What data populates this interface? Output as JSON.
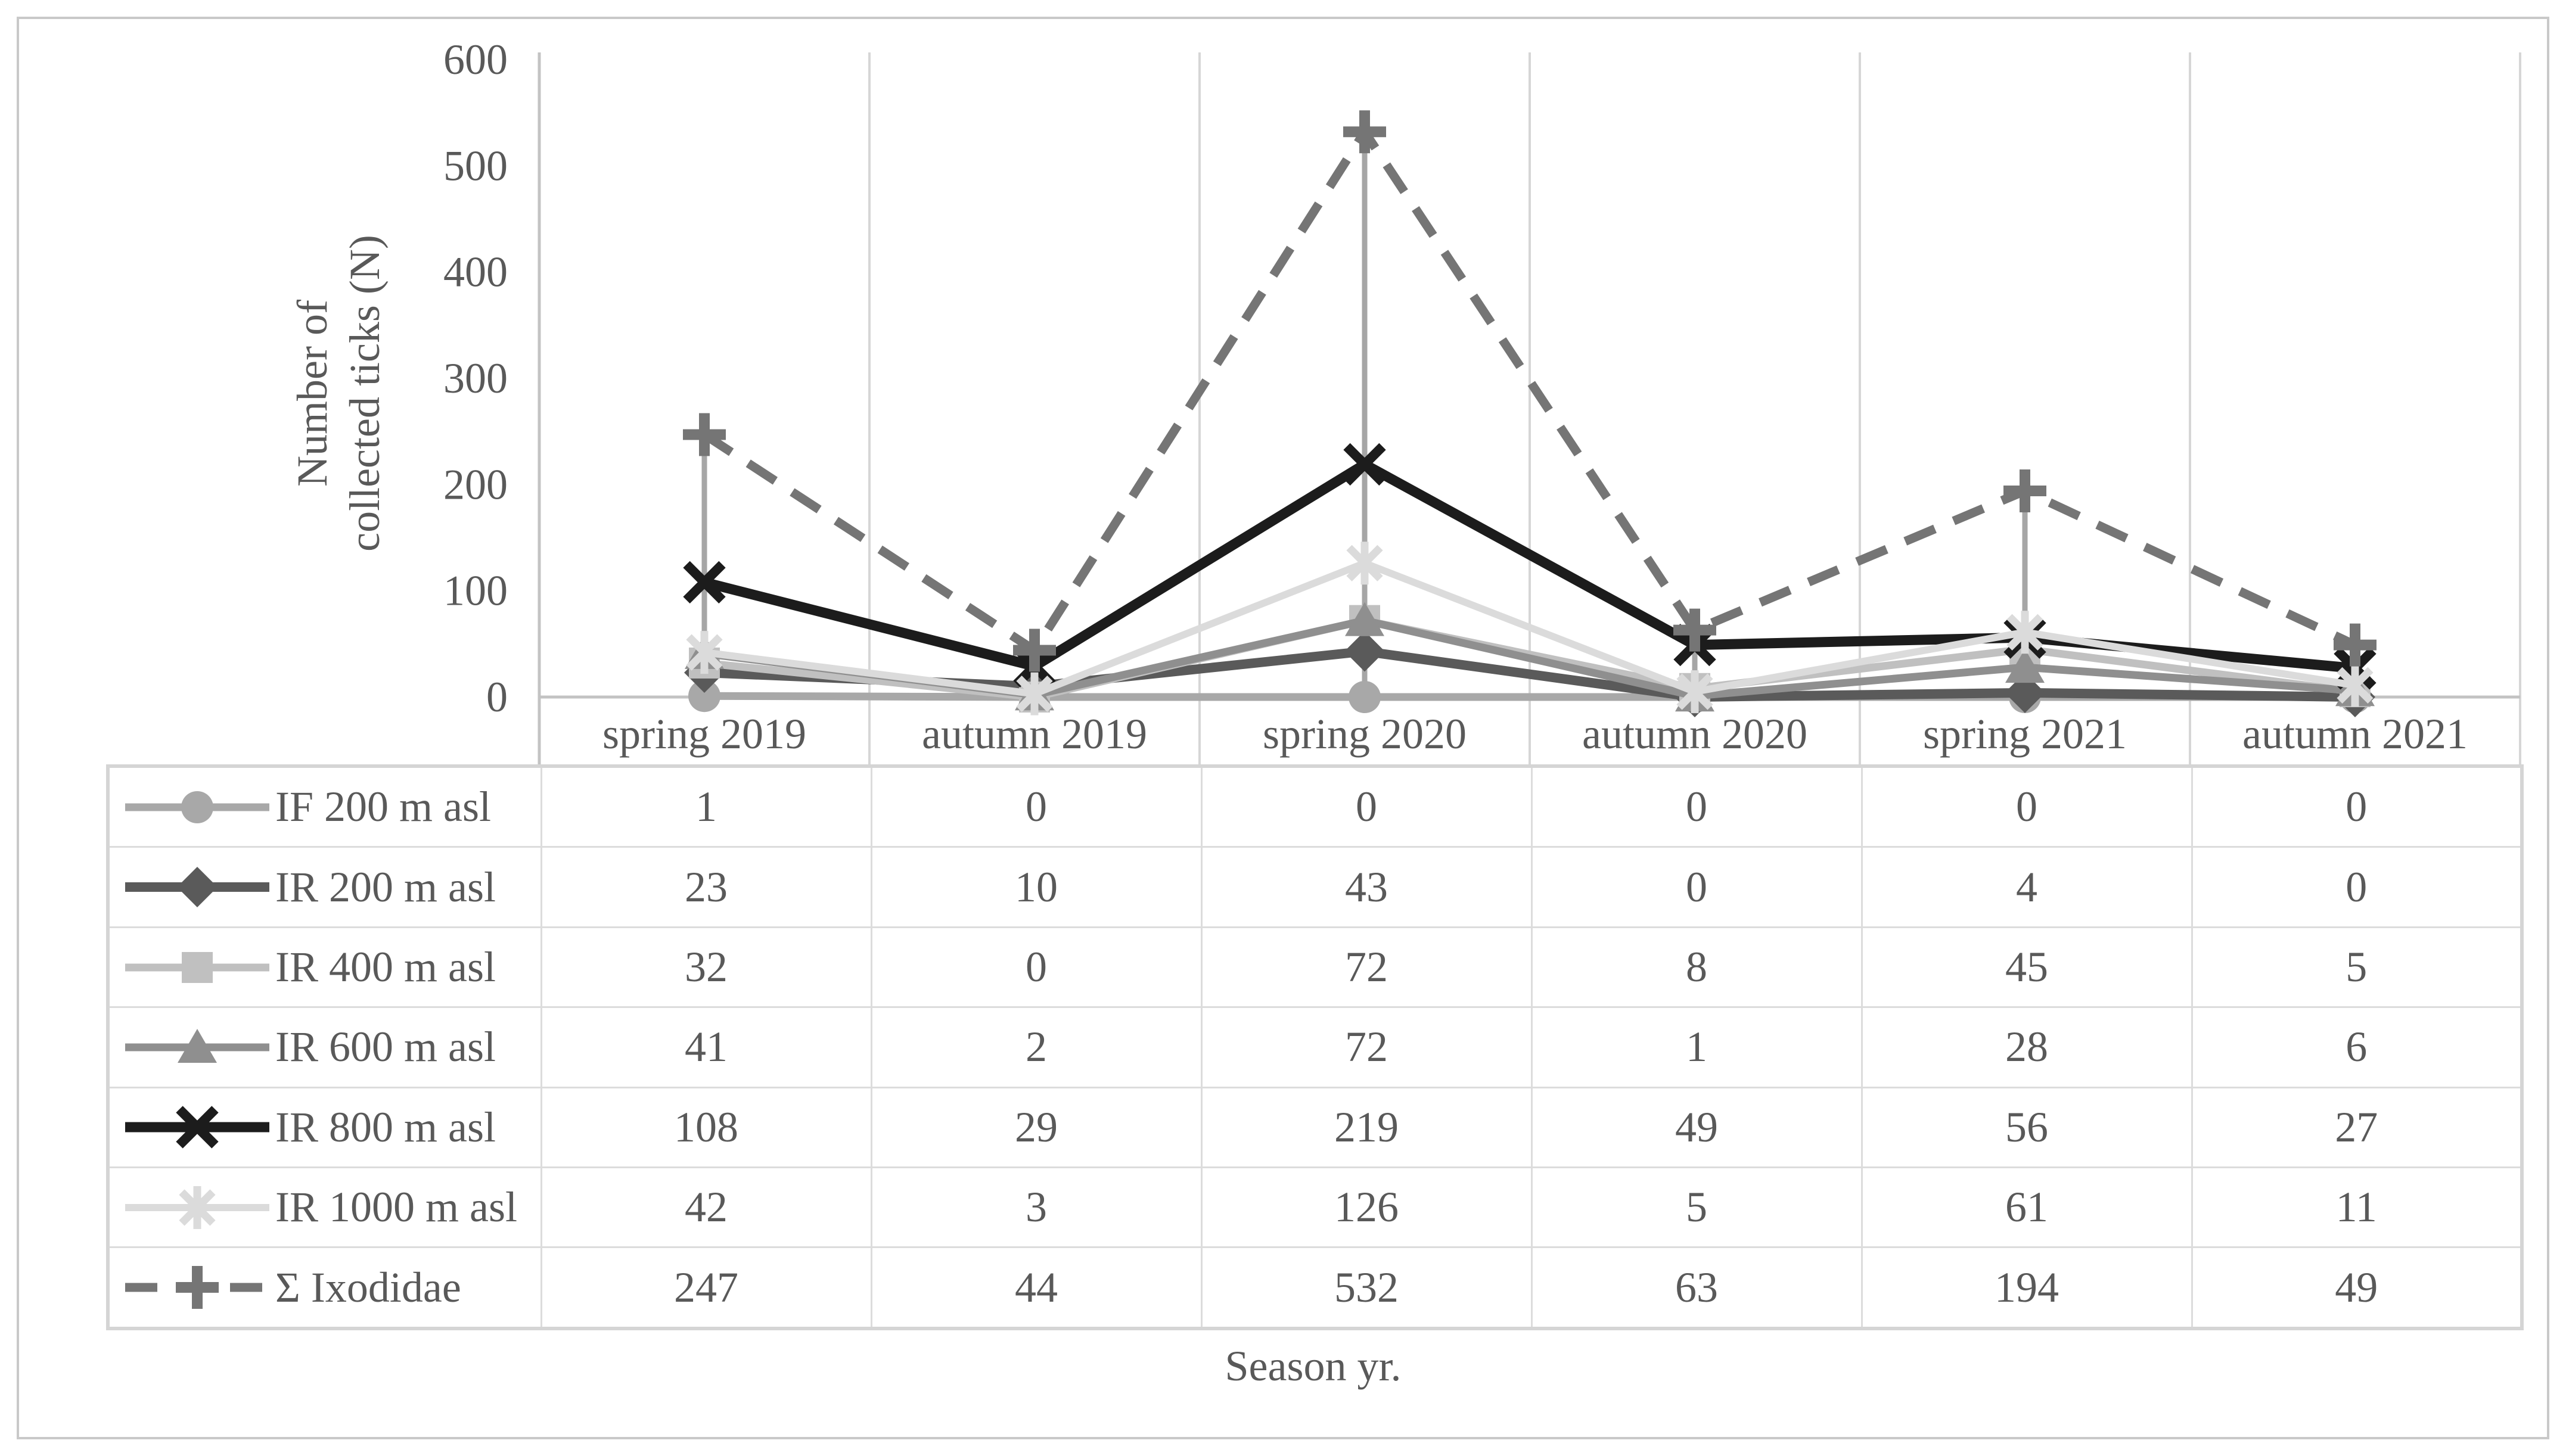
{
  "figure": {
    "background": "#ffffff",
    "border_color": "#c9c9c9"
  },
  "chart_data": {
    "type": "line",
    "title": "",
    "ylabel": "Number of collected ticks (N)",
    "ylabel_lines": [
      "Number of",
      "collected ticks (N)"
    ],
    "xlabel": "Season yr.",
    "ylim": [
      0,
      600
    ],
    "yticks": [
      "0",
      "100",
      "200",
      "300",
      "400",
      "500",
      "600"
    ],
    "grid": "vertical-lines-at-category-boundaries",
    "legend_position": "data-table-first-column",
    "categories": [
      "spring 2019",
      "autumn 2019",
      "spring 2020",
      "autumn 2020",
      "spring 2021",
      "autumn 2021"
    ],
    "series": [
      {
        "name": "IF 200 m asl",
        "marker": "circle",
        "color": "#a8a8a8",
        "line_width": 13,
        "dash": "",
        "values": [
          1,
          0,
          0,
          0,
          0,
          0
        ]
      },
      {
        "name": "IR 200 m asl",
        "marker": "diamond",
        "color": "#5a5a5a",
        "line_width": 16,
        "dash": "",
        "values": [
          23,
          10,
          43,
          0,
          4,
          0
        ]
      },
      {
        "name": "IR 400 m asl",
        "marker": "square",
        "color": "#c0c0c0",
        "line_width": 13,
        "dash": "",
        "values": [
          32,
          0,
          72,
          8,
          45,
          5
        ]
      },
      {
        "name": "IR 600 m asl",
        "marker": "triangle",
        "color": "#8f8f8f",
        "line_width": 13,
        "dash": "",
        "values": [
          41,
          2,
          72,
          1,
          28,
          6
        ]
      },
      {
        "name": "IR 800 m asl",
        "marker": "x",
        "color": "#1c1c1c",
        "line_width": 17,
        "dash": "",
        "values": [
          108,
          29,
          219,
          49,
          56,
          27
        ]
      },
      {
        "name": "IR 1000 m asl",
        "marker": "star",
        "color": "#dbdbdb",
        "line_width": 12,
        "dash": "",
        "values": [
          42,
          3,
          126,
          5,
          61,
          11
        ]
      },
      {
        "name": "Σ Ixodidae",
        "marker": "plus",
        "color": "#757575",
        "line_width": 15,
        "dash": "54 34",
        "values": [
          247,
          44,
          532,
          63,
          194,
          49
        ]
      }
    ],
    "drop_lines": {
      "enabled": true,
      "color": "#a6a6a6"
    },
    "axis_color": "#c3c3c3",
    "gridline_color": "#d6d6d6",
    "text_color": "#595959",
    "table_border_color": "#dcdcdc"
  }
}
